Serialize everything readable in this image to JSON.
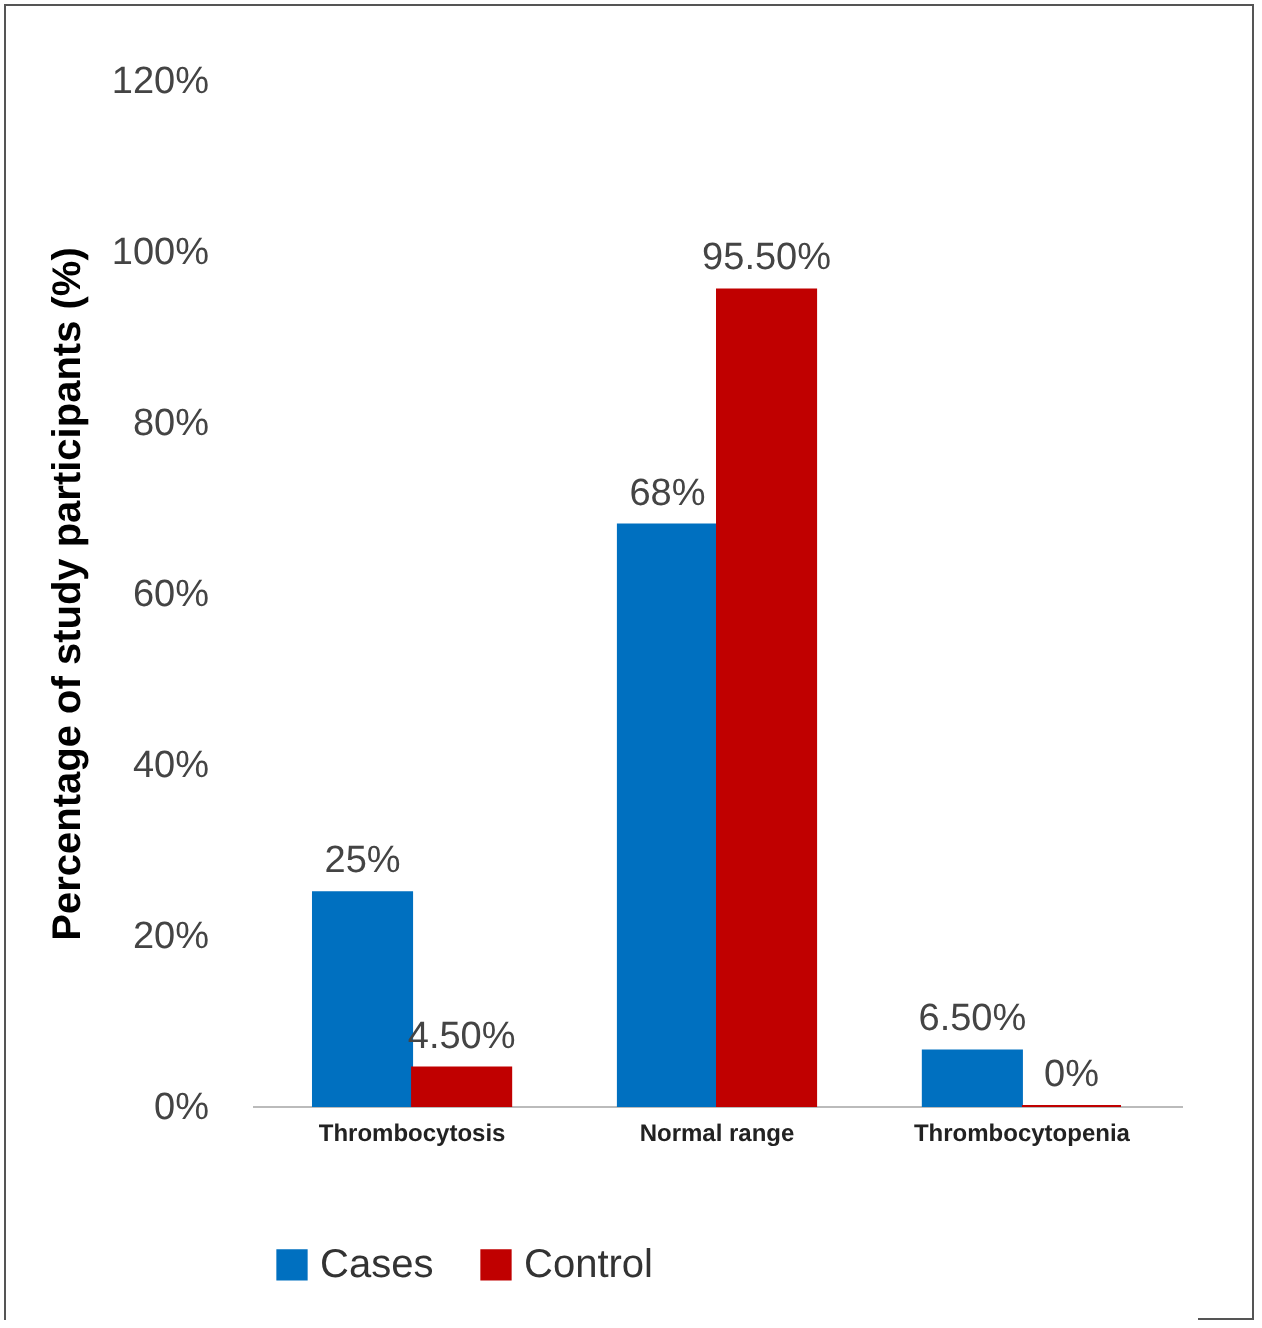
{
  "chart_data": {
    "type": "bar",
    "ylabel": "Percentage of study participants (%)",
    "categories": [
      "Thrombocytosis",
      "Normal range",
      "Thrombocytopenia"
    ],
    "series": [
      {
        "name": "Cases",
        "color": "#0070c0",
        "values": [
          25,
          68,
          6.5
        ],
        "value_labels": [
          "25%",
          "68%",
          "6.50%"
        ]
      },
      {
        "name": "Control",
        "color": "#c00000",
        "values": [
          4.5,
          95.5,
          0
        ],
        "value_labels": [
          "4.50%",
          "95.50%",
          "0%"
        ]
      }
    ],
    "ylim": [
      0,
      120
    ],
    "yticks": [
      {
        "value": 0,
        "label": "0%"
      },
      {
        "value": 20,
        "label": "20%"
      },
      {
        "value": 40,
        "label": "40%"
      },
      {
        "value": 60,
        "label": "60%"
      },
      {
        "value": 80,
        "label": "80%"
      },
      {
        "value": 100,
        "label": "100%"
      },
      {
        "value": 120,
        "label": "120%"
      }
    ],
    "grid": false,
    "legend": "bottom"
  }
}
